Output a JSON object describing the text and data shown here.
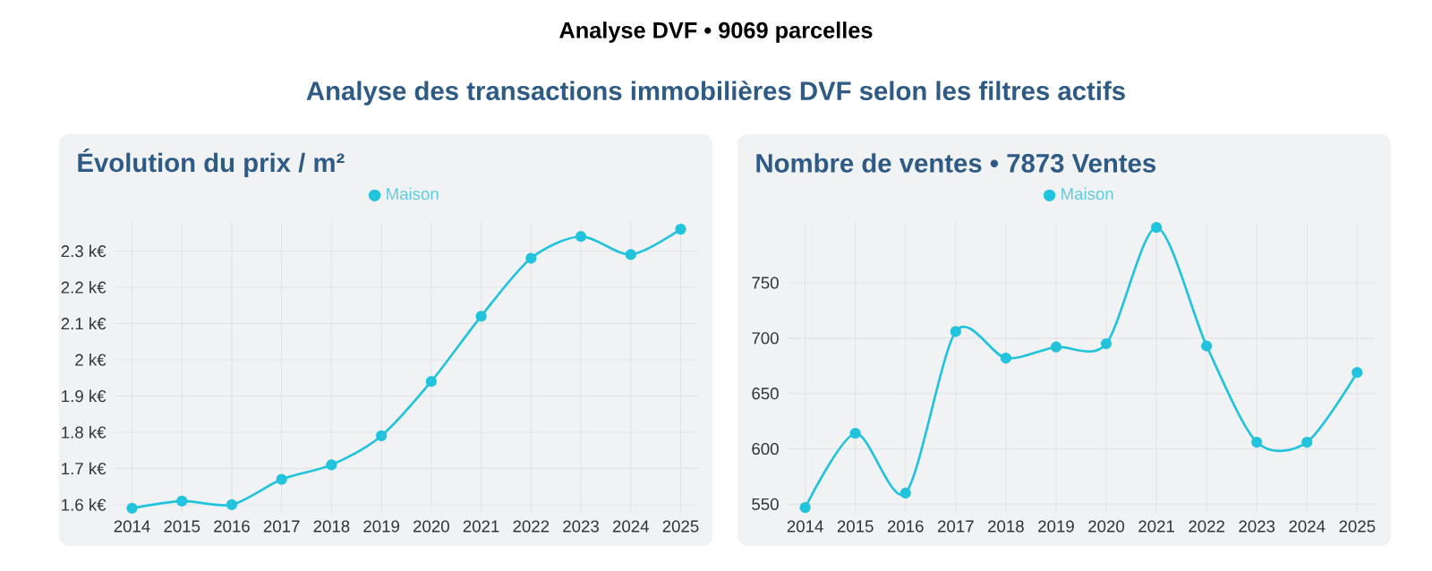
{
  "chart_data": [
    {
      "type": "line",
      "title": "Évolution du prix / m²",
      "annotations": [
        "Analyse DVF • 9069 parcelles",
        "Analyse des transactions immobilières DVF selon les filtres actifs"
      ],
      "categories": [
        "2014",
        "2015",
        "2016",
        "2017",
        "2018",
        "2019",
        "2020",
        "2021",
        "2022",
        "2023",
        "2024",
        "2025"
      ],
      "series": [
        {
          "name": "Maison",
          "color": "#22c3dc",
          "values": [
            1.59,
            1.61,
            1.6,
            1.67,
            1.71,
            1.79,
            1.94,
            2.12,
            2.28,
            2.34,
            2.29,
            2.36
          ]
        }
      ],
      "ylim": [
        1.58,
        2.38
      ],
      "yticks": [
        {
          "value": 1.6,
          "label": "1.6 k€"
        },
        {
          "value": 1.7,
          "label": "1.7 k€"
        },
        {
          "value": 1.8,
          "label": "1.8 k€"
        },
        {
          "value": 1.9,
          "label": "1.9 k€"
        },
        {
          "value": 2,
          "label": "2 k€"
        },
        {
          "value": 2.1,
          "label": "2.1 k€"
        },
        {
          "value": 2.2,
          "label": "2.2 k€"
        },
        {
          "value": 2.3,
          "label": "2.3 k€"
        }
      ],
      "grid": true,
      "legend": "top",
      "marker": "circle"
    },
    {
      "type": "line",
      "title": "Nombre de ventes • 7873 Ventes",
      "categories": [
        "2014",
        "2015",
        "2016",
        "2017",
        "2018",
        "2019",
        "2020",
        "2021",
        "2022",
        "2023",
        "2024",
        "2025"
      ],
      "series": [
        {
          "name": "Maison",
          "color": "#22c3dc",
          "values": [
            547,
            614,
            560,
            706,
            682,
            692,
            695,
            800,
            693,
            606,
            606,
            669
          ]
        }
      ],
      "ylim": [
        543,
        805
      ],
      "yticks": [
        550,
        600,
        650,
        700,
        750
      ],
      "grid": true,
      "legend": "top",
      "marker": "circle"
    }
  ]
}
